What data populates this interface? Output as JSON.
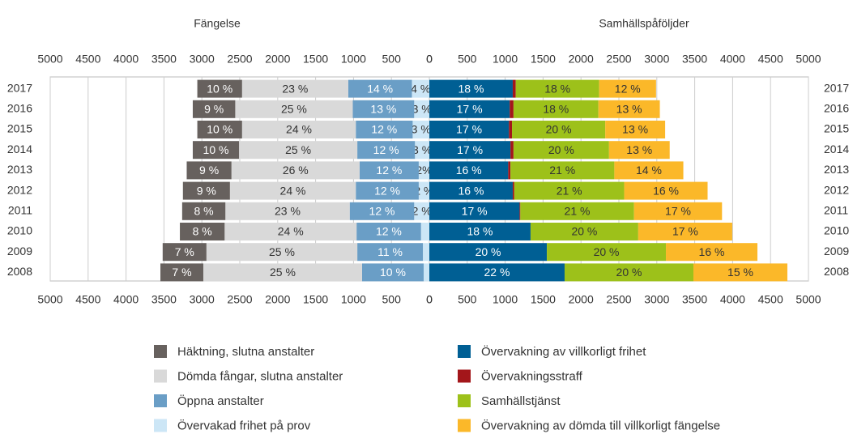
{
  "chart_data": {
    "type": "diverging_bar",
    "titles": [
      "Fängelse",
      "Samhällspåföljder"
    ],
    "categories": [
      "2017",
      "2016",
      "2015",
      "2014",
      "2013",
      "2012",
      "2011",
      "2010",
      "2009",
      "2008"
    ],
    "xlim": [
      0,
      5000
    ],
    "xticks": [
      0,
      500,
      1000,
      1500,
      2000,
      2500,
      3000,
      3500,
      4000,
      4500,
      5000
    ],
    "grid": true,
    "series": [
      {
        "name": "Häktning, slutna anstalter",
        "side": "left",
        "color": "#67615e",
        "values": [
          590,
          560,
          590,
          610,
          590,
          620,
          570,
          590,
          577,
          566
        ],
        "value_labels": [
          "10 %",
          "9 %",
          "10 %",
          "10 %",
          "9 %",
          "9 %",
          "8 %",
          "8 %",
          "7 %",
          "7 %"
        ]
      },
      {
        "name": "Dömda fångar, slutna anstalter",
        "side": "left",
        "color": "#d9d9d9",
        "values": [
          1400,
          1550,
          1500,
          1560,
          1690,
          1660,
          1640,
          1740,
          1990,
          2094
        ],
        "value_labels": [
          "23 %",
          "25 %",
          "24 %",
          "25 %",
          "26 %",
          "24 %",
          "23 %",
          "24 %",
          "25 %",
          "25 %"
        ]
      },
      {
        "name": "Öppna anstalter",
        "side": "left",
        "color": "#6a9ec6",
        "values": [
          840,
          810,
          750,
          760,
          780,
          830,
          850,
          850,
          865,
          812
        ],
        "value_labels": [
          "14 %",
          "13 %",
          "12 %",
          "12 %",
          "12 %",
          "12 %",
          "12 %",
          "12 %",
          "11 %",
          "10 %"
        ]
      },
      {
        "name": "Övervakad frihet på prov",
        "side": "left",
        "color": "#cce6f6",
        "values": [
          230,
          200,
          220,
          190,
          140,
          140,
          200,
          110,
          85,
          75
        ],
        "value_labels": [
          "4 %",
          "3 %",
          "3 %",
          "3 %",
          "2%",
          "2 %",
          "2 %",
          null,
          null,
          null
        ]
      },
      {
        "name": "Övervakning av villkorligt frihet",
        "side": "right",
        "color": "#005f94",
        "values": [
          1100,
          1060,
          1050,
          1070,
          1040,
          1100,
          1190,
          1335,
          1550,
          1784
        ],
        "value_labels": [
          "18 %",
          "17 %",
          "17 %",
          "17 %",
          "16 %",
          "16 %",
          "17 %",
          "18 %",
          "20 %",
          "22 %"
        ]
      },
      {
        "name": "Övervakningsstraff",
        "side": "right",
        "color": "#a3161a",
        "values": [
          40,
          50,
          40,
          40,
          30,
          20,
          10,
          0,
          0,
          0
        ]
      },
      {
        "name": "Samhällstjänst",
        "side": "right",
        "color": "#9dc11a",
        "values": [
          1100,
          1120,
          1230,
          1260,
          1370,
          1450,
          1500,
          1420,
          1570,
          1699
        ],
        "value_labels": [
          "18 %",
          "18 %",
          "20 %",
          "20 %",
          "21 %",
          "21 %",
          "21 %",
          "20 %",
          "20 %",
          "20 %"
        ]
      },
      {
        "name": "Övervakning av dömda till villkorligt fängelse",
        "side": "right",
        "color": "#fbb829",
        "values": [
          750,
          810,
          790,
          800,
          910,
          1100,
          1160,
          1240,
          1207,
          1239
        ],
        "value_labels": [
          "12 %",
          "13 %",
          "13 %",
          "13 %",
          "14 %",
          "16 %",
          "17 %",
          "17 %",
          "16 %",
          "15 %"
        ]
      }
    ]
  }
}
